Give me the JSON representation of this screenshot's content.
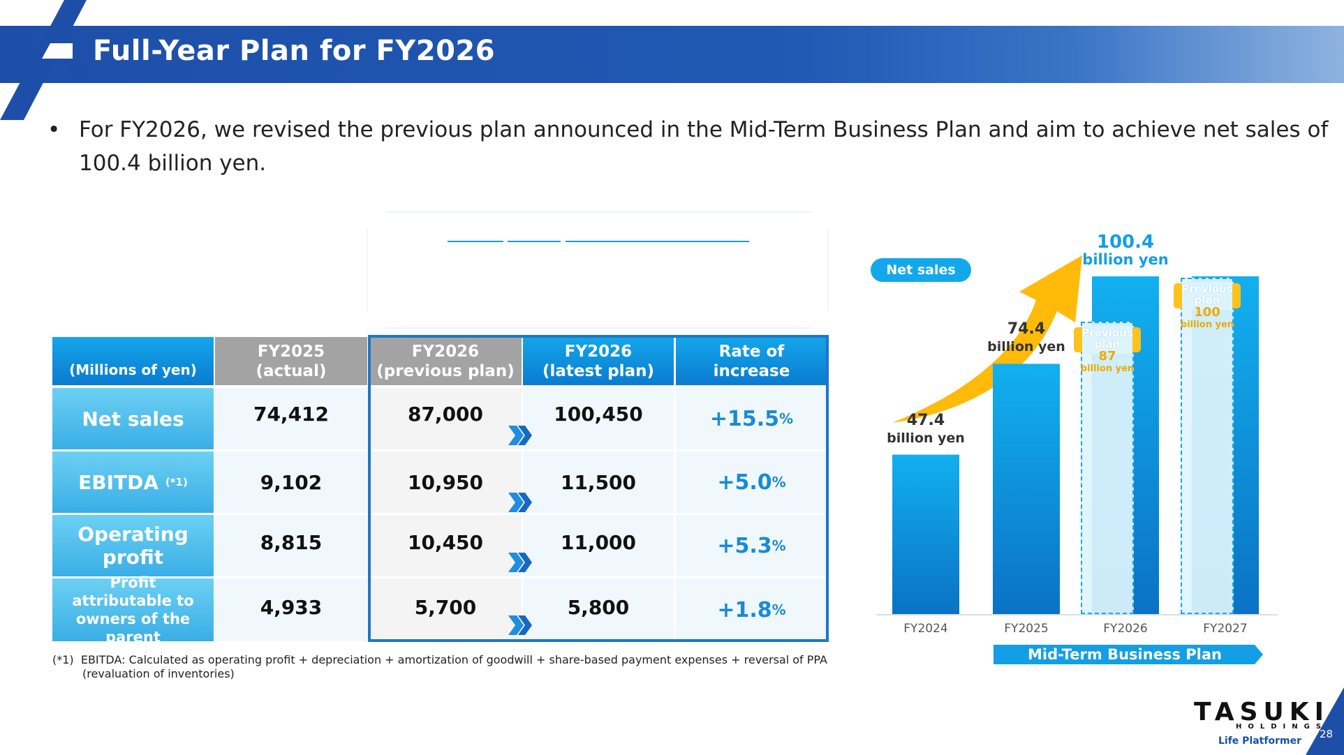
{
  "header": {
    "title": "Full-Year Plan for FY2026"
  },
  "bullet": {
    "text": "For FY2026, we revised the previous plan announced in the Mid-Term Business Plan and aim to achieve net sales of 100.4 billion yen."
  },
  "table": {
    "unit_label": "(Millions of yen)",
    "columns": [
      {
        "line1": "FY2025",
        "line2": "(actual)"
      },
      {
        "line1": "FY2026",
        "line2": "(previous plan)"
      },
      {
        "line1": "FY2026",
        "line2": "(latest plan)"
      },
      {
        "line1": "Rate of",
        "line2": "increase"
      }
    ],
    "rows": [
      {
        "label": "Net sales",
        "note": "",
        "fy2025": "74,412",
        "prev": "87,000",
        "latest": "100,450",
        "rate": "+15.5",
        "pct": "%"
      },
      {
        "label": "EBITDA",
        "note": "(*1)",
        "fy2025": "9,102",
        "prev": "10,950",
        "latest": "11,500",
        "rate": "+5.0",
        "pct": "%"
      },
      {
        "label": "Operating profit",
        "note": "",
        "fy2025": "8,815",
        "prev": "10,450",
        "latest": "11,000",
        "rate": "+5.3",
        "pct": "%"
      },
      {
        "label": "Profit attributable to owners of the parent",
        "note": "",
        "fy2025": "4,933",
        "prev": "5,700",
        "latest": "5,800",
        "rate": "+1.8",
        "pct": "%"
      }
    ]
  },
  "footnote": {
    "marker": "(*1)",
    "line1": "EBITDA: Calculated as operating profit + depreciation + amortization of goodwill + share-based payment expenses + reversal of PPA",
    "line2": "(revaluation of inventories)"
  },
  "chart_data": {
    "type": "bar",
    "title": "",
    "legend_pill": "Net sales",
    "categories": [
      "FY2024",
      "FY2025",
      "FY2026",
      "FY2027"
    ],
    "series": [
      {
        "name": "Net sales",
        "values": [
          47.4,
          74.4,
          100.4,
          null
        ]
      }
    ],
    "value_labels": [
      {
        "value": "47.4",
        "unit": "billion yen"
      },
      {
        "value": "74.4",
        "unit": "billion yen"
      },
      {
        "value": "100.4",
        "unit": "billion yen"
      }
    ],
    "previous_plan": [
      {
        "category": "FY2026",
        "label": "Previous plan",
        "value": "87",
        "unit": "billion yen"
      },
      {
        "category": "FY2027",
        "label": "Previous plan",
        "value": "100",
        "unit": "billion yen"
      }
    ],
    "bracket_label": "Mid-Term Business Plan",
    "colors": {
      "bar_top": "#12b0ef",
      "bar_bottom": "#0a72c4",
      "arrow": "#ffba0a",
      "previous_tag": "#ffc21a"
    },
    "grid": false
  },
  "brand": {
    "name": "TASUKI",
    "sub": "HOLDINGS",
    "tagline": "Life Platformer",
    "page": "28"
  }
}
